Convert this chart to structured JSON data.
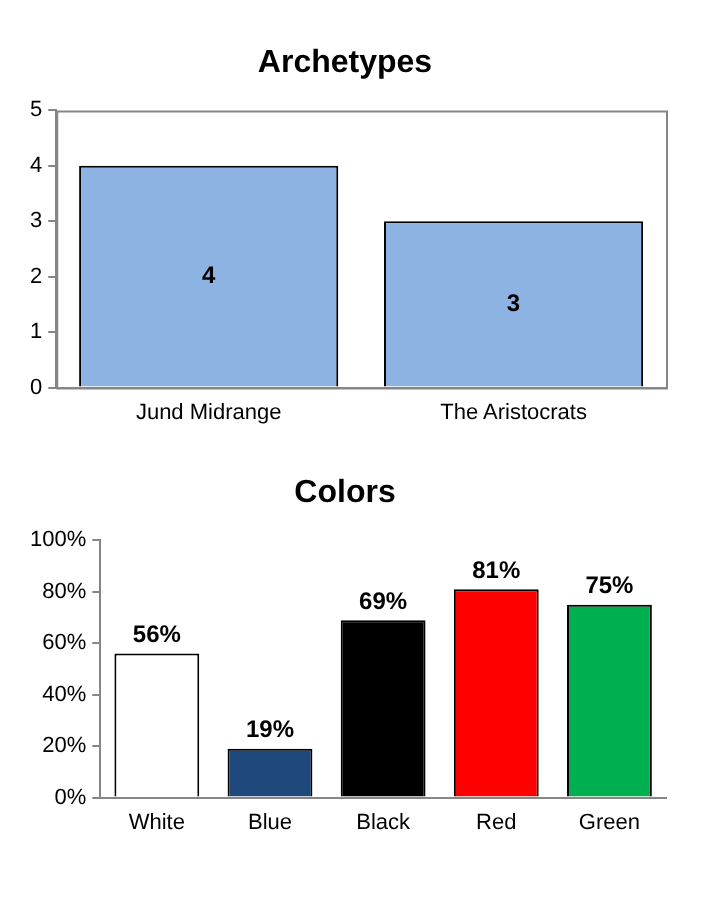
{
  "chart_data": [
    {
      "type": "bar",
      "title": "Archetypes",
      "categories": [
        "Jund Midrange",
        "The Aristocrats"
      ],
      "values": [
        4,
        3
      ],
      "color": "#8db3e2",
      "ylim": [
        0,
        5
      ],
      "yticks": [
        0,
        1,
        2,
        3,
        4,
        5
      ],
      "data_labels": true,
      "grid": false,
      "legend": false
    },
    {
      "type": "bar",
      "title": "Colors",
      "categories": [
        "White",
        "Blue",
        "Black",
        "Red",
        "Green"
      ],
      "values": [
        56,
        19,
        69,
        81,
        75
      ],
      "colors": [
        "#ffffff",
        "#1f497d",
        "#000000",
        "#ff0000",
        "#00b050"
      ],
      "value_labels": [
        "56%",
        "19%",
        "69%",
        "81%",
        "75%"
      ],
      "ylim": [
        0,
        100
      ],
      "yticks": [
        {
          "value": 0,
          "label": "0%"
        },
        {
          "value": 20,
          "label": "20%"
        },
        {
          "value": 40,
          "label": "40%"
        },
        {
          "value": 60,
          "label": "60%"
        },
        {
          "value": 80,
          "label": "80%"
        },
        {
          "value": 100,
          "label": "100%"
        }
      ],
      "grid": false,
      "legend": false
    }
  ]
}
